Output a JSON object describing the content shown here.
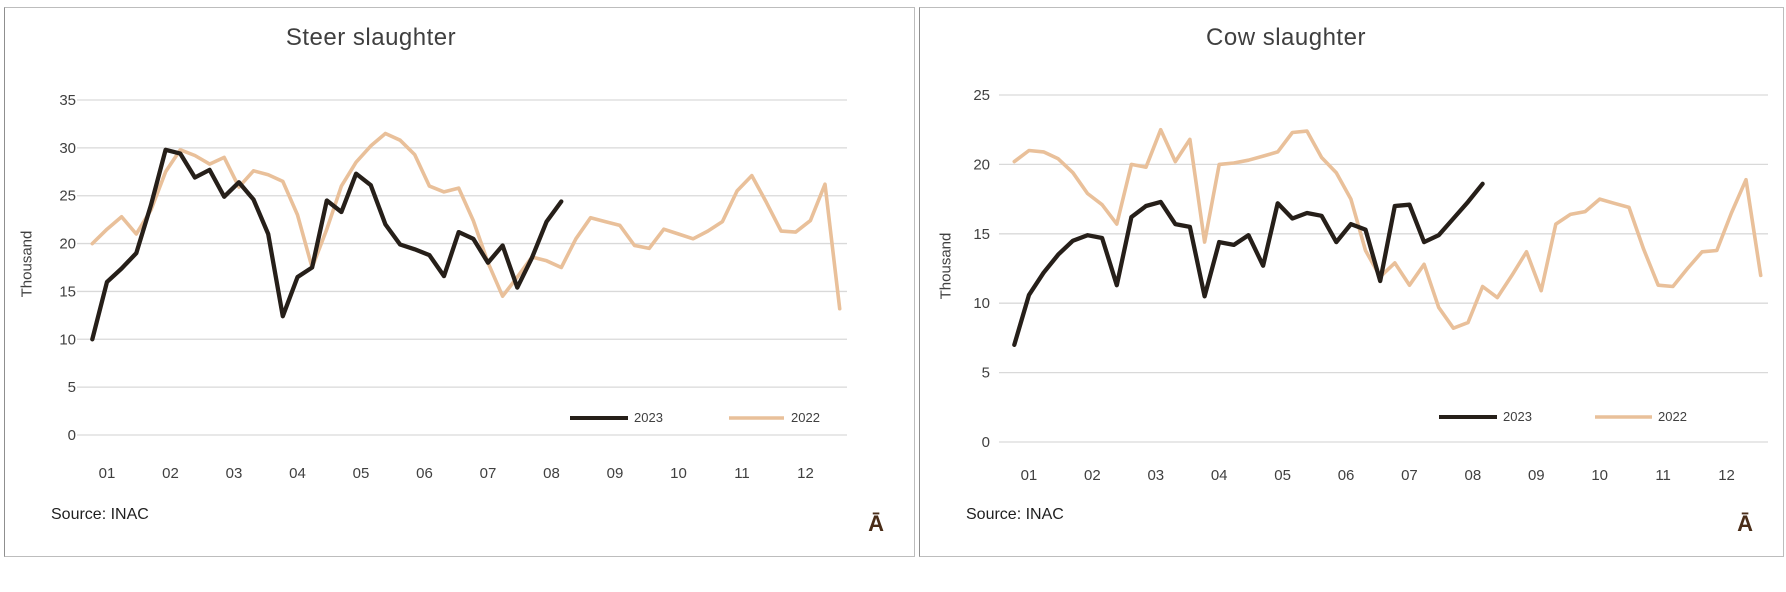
{
  "chart_data": [
    {
      "type": "line",
      "title": "Steer slaughter",
      "ylabel": "Thousand",
      "source_note": "Source: INAC",
      "corner_glyph": "Ā",
      "x_tick_labels": [
        "01",
        "02",
        "03",
        "04",
        "05",
        "06",
        "07",
        "08",
        "09",
        "10",
        "11",
        "12"
      ],
      "x_axis_note": "weekly data, 52 weekly slots across months 01-12",
      "ylim": [
        0,
        35
      ],
      "ytick_step": 5,
      "grid": true,
      "legend_position": "inside-bottom-right",
      "legend_labels": [
        "2023",
        "2022"
      ],
      "series": [
        {
          "name": "2023",
          "color": "#261f19",
          "values": [
            10.0,
            16.0,
            17.4,
            19.0,
            24.0,
            29.8,
            29.4,
            26.9,
            27.7,
            24.9,
            26.4,
            24.6,
            21.0,
            12.4,
            16.5,
            17.5,
            24.5,
            23.3,
            27.3,
            26.1,
            22.0,
            19.9,
            19.4,
            18.8,
            16.6,
            21.2,
            20.5,
            18.0,
            19.8,
            15.4,
            18.5,
            22.3,
            24.4
          ]
        },
        {
          "name": "2022",
          "color": "#e9c09a",
          "values": [
            20.0,
            21.5,
            22.8,
            21.0,
            23.5,
            27.5,
            29.8,
            29.2,
            28.3,
            29.0,
            25.9,
            27.6,
            27.2,
            26.5,
            23.0,
            17.5,
            21.5,
            26.0,
            28.5,
            30.2,
            31.5,
            30.8,
            29.3,
            26.0,
            25.4,
            25.8,
            22.4,
            18.0,
            14.5,
            16.5,
            18.6,
            18.2,
            17.5,
            20.5,
            22.7,
            22.3,
            21.9,
            19.8,
            19.5,
            21.5,
            21.0,
            20.5,
            21.3,
            22.3,
            25.5,
            27.1,
            24.3,
            21.3,
            21.2,
            22.4,
            26.2,
            13.2
          ]
        }
      ]
    },
    {
      "type": "line",
      "title": "Cow slaughter",
      "ylabel": "Thousand",
      "source_note": "Source: INAC",
      "corner_glyph": "Ā",
      "x_tick_labels": [
        "01",
        "02",
        "03",
        "04",
        "05",
        "06",
        "07",
        "08",
        "09",
        "10",
        "11",
        "12"
      ],
      "x_axis_note": "weekly data, 52 weekly slots across months 01-12",
      "ylim": [
        0,
        25
      ],
      "ytick_step": 5,
      "grid": true,
      "legend_position": "inside-bottom-right",
      "legend_labels": [
        "2023",
        "2022"
      ],
      "series": [
        {
          "name": "2023",
          "color": "#261f19",
          "values": [
            7.0,
            10.6,
            12.2,
            13.5,
            14.5,
            14.9,
            14.7,
            11.3,
            16.2,
            17.0,
            17.3,
            15.7,
            15.5,
            10.5,
            14.4,
            14.2,
            14.9,
            12.7,
            17.2,
            16.1,
            16.5,
            16.3,
            14.4,
            15.7,
            15.3,
            11.6,
            17.0,
            17.1,
            14.4,
            14.9,
            16.1,
            17.3,
            18.6
          ]
        },
        {
          "name": "2022",
          "color": "#e9c09a",
          "values": [
            20.2,
            21.0,
            20.9,
            20.4,
            19.4,
            17.9,
            17.1,
            15.7,
            20.0,
            19.8,
            22.5,
            20.2,
            21.8,
            14.4,
            20.0,
            20.1,
            20.3,
            20.6,
            20.9,
            22.3,
            22.4,
            20.5,
            19.4,
            17.5,
            13.8,
            11.9,
            12.9,
            11.3,
            12.8,
            9.7,
            8.2,
            8.6,
            11.2,
            10.4,
            12.0,
            13.7,
            10.9,
            15.7,
            16.4,
            16.6,
            17.5,
            17.2,
            16.9,
            13.9,
            11.3,
            11.2,
            12.5,
            13.7,
            13.8,
            16.5,
            18.9,
            12.0
          ]
        }
      ]
    }
  ]
}
